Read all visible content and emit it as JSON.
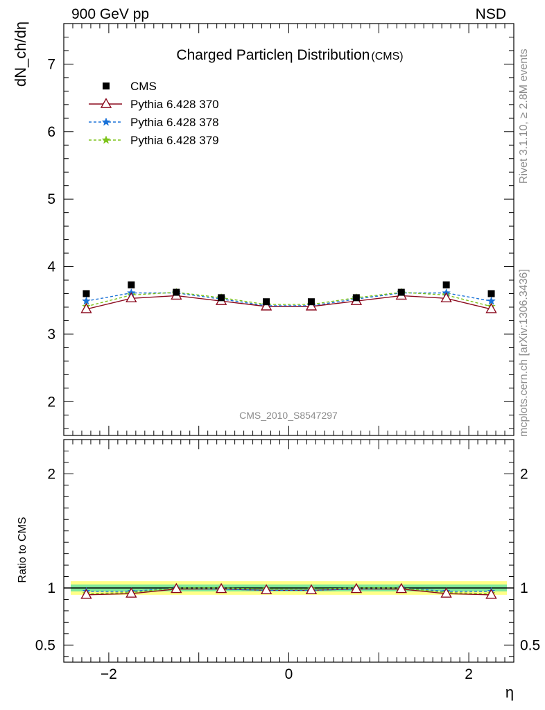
{
  "header": {
    "left": "900 GeV pp",
    "right": "NSD"
  },
  "side_text": {
    "rivet": "Rivet 3.1.10, ≥ 2.8M events",
    "mcplots": "mcplots.cern.ch [arXiv:1306.3436]"
  },
  "colors": {
    "cms": "#000000",
    "pythia370": "#8b0a1e",
    "pythia378": "#1a72d8",
    "pythia379": "#7dc41a",
    "band_inner": "#7fe89a",
    "band_outer": "#ffff88",
    "ratio_line": "#000000",
    "watermark": "#8c8c8c"
  },
  "chart_data": [
    {
      "type": "scatter",
      "title": "Charged Particleη Distribution",
      "title_suffix": "(CMS)",
      "ylabel": "dN_ch/dη",
      "xlim": [
        -2.5,
        2.5
      ],
      "ylim": [
        1.5,
        7.6
      ],
      "yticks": [
        2,
        3,
        4,
        5,
        6,
        7
      ],
      "watermark": "CMS_2010_S8547297",
      "legend_position": "top-left",
      "x": [
        -2.25,
        -1.75,
        -1.25,
        -0.75,
        -0.25,
        0.25,
        0.75,
        1.25,
        1.75,
        2.25
      ],
      "series": [
        {
          "name": "CMS",
          "marker": "square",
          "values": [
            3.6,
            3.73,
            3.62,
            3.54,
            3.48,
            3.48,
            3.54,
            3.62,
            3.73,
            3.6
          ]
        },
        {
          "name": "Pythia 6.428 370",
          "marker": "open-triangle",
          "line": "solid",
          "values": [
            3.37,
            3.53,
            3.57,
            3.49,
            3.41,
            3.41,
            3.49,
            3.57,
            3.53,
            3.37
          ]
        },
        {
          "name": "Pythia 6.428 378",
          "marker": "star",
          "line": "dashed",
          "values": [
            3.49,
            3.61,
            3.61,
            3.52,
            3.42,
            3.42,
            3.52,
            3.61,
            3.61,
            3.49
          ]
        },
        {
          "name": "Pythia 6.428 379",
          "marker": "star",
          "line": "dashed",
          "values": [
            3.41,
            3.58,
            3.62,
            3.54,
            3.44,
            3.44,
            3.54,
            3.62,
            3.58,
            3.41
          ]
        }
      ]
    },
    {
      "type": "scatter",
      "xlabel": "η",
      "ylabel": "Ratio to CMS",
      "xlim": [
        -2.5,
        2.5
      ],
      "ylim": [
        0.35,
        2.3
      ],
      "yticks": [
        0.5,
        1,
        2
      ],
      "xticks": [
        -2,
        0,
        2
      ],
      "xtick_labels": [
        "−2",
        "0",
        "2"
      ],
      "x": [
        -2.25,
        -1.75,
        -1.25,
        -0.75,
        -0.25,
        0.25,
        0.75,
        1.25,
        1.75,
        2.25
      ],
      "band": {
        "inner_half_width": 0.03,
        "outer_half_width": 0.06
      },
      "series": [
        {
          "name": "Pythia 6.428 370",
          "values": [
            0.94,
            0.95,
            0.99,
            0.99,
            0.98,
            0.98,
            0.99,
            0.99,
            0.95,
            0.94
          ]
        },
        {
          "name": "Pythia 6.428 378",
          "values": [
            0.97,
            0.97,
            1.0,
            0.99,
            0.98,
            0.98,
            0.99,
            1.0,
            0.97,
            0.97
          ]
        },
        {
          "name": "Pythia 6.428 379",
          "values": [
            0.95,
            0.96,
            1.0,
            1.0,
            0.99,
            0.99,
            1.0,
            1.0,
            0.96,
            0.95
          ]
        }
      ]
    }
  ]
}
